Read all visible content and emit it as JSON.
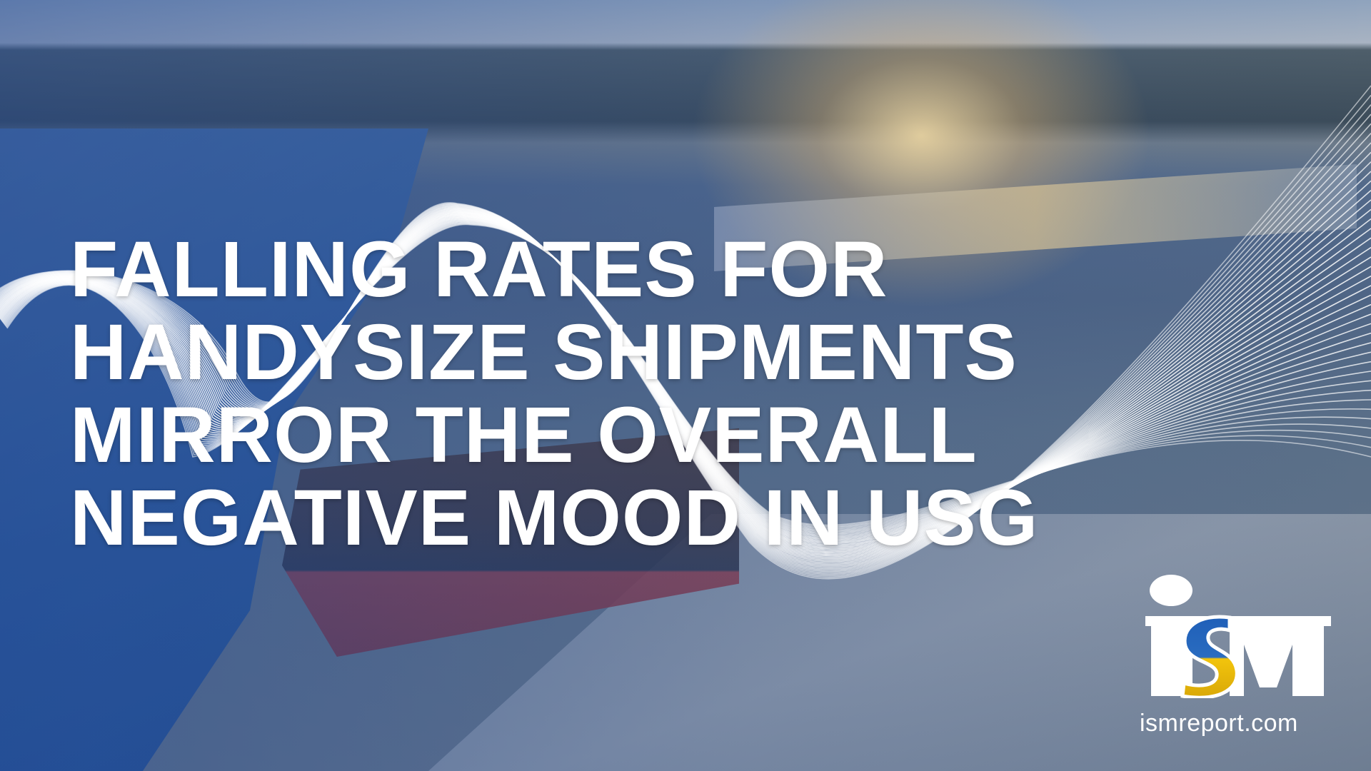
{
  "headline": {
    "lines": [
      "FALLING RATES FOR",
      "HANDYSIZE SHIPMENTS",
      "MIRROR THE OVERALL",
      "NEGATIVE MOOD IN USG"
    ]
  },
  "brand": {
    "logo_text": "ISM",
    "website": "ismreport.com",
    "flag_colors": [
      "#1f5fb8",
      "#f2c40c"
    ]
  },
  "colors": {
    "text": "#ffffff",
    "overlay": "#1e4696"
  }
}
